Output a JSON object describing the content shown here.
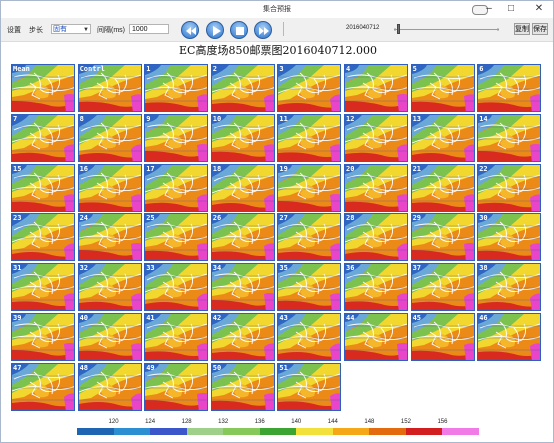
{
  "window": {
    "title": "集合预报"
  },
  "toolbar": {
    "settings_label": "设置",
    "step_label": "步长",
    "step_value": "固有",
    "interval_label": "间隔(ms)",
    "interval_value": "1000",
    "faded_label": "",
    "date_label": "2016040712",
    "copy_label": "复制",
    "save_label": "保存",
    "controls": [
      "previous",
      "play",
      "stop",
      "next"
    ]
  },
  "chart_data": {
    "type": "heatmap",
    "title": "EC高度场850邮票图2016040712.000",
    "panel_labels": [
      "Mean",
      "Contrl",
      "1",
      "2",
      "3",
      "4",
      "5",
      "6",
      "7",
      "8",
      "9",
      "10",
      "11",
      "12",
      "13",
      "14",
      "15",
      "16",
      "17",
      "18",
      "19",
      "20",
      "21",
      "22",
      "23",
      "24",
      "25",
      "26",
      "27",
      "28",
      "29",
      "30",
      "31",
      "32",
      "33",
      "34",
      "35",
      "36",
      "37",
      "38",
      "39",
      "40",
      "41",
      "42",
      "43",
      "44",
      "45",
      "46",
      "47",
      "48",
      "49",
      "50",
      "51"
    ],
    "legend": {
      "levels": [
        "120",
        "124",
        "128",
        "132",
        "136",
        "140",
        "144",
        "148",
        "152",
        "156"
      ],
      "colors": [
        "#1e66b4",
        "#2c8fd2",
        "#3a56c8",
        "#9fd08a",
        "#86c95a",
        "#3ca532",
        "#f2e13a",
        "#f4a818",
        "#e46a10",
        "#d21e1e",
        "#f07ae6"
      ]
    },
    "grid": "8 columns x 7 rows"
  }
}
